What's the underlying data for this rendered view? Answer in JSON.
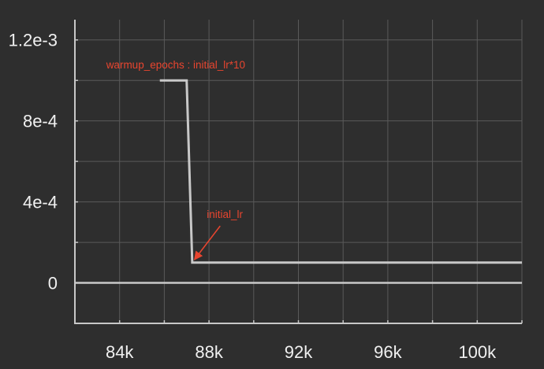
{
  "chart_data": {
    "type": "line",
    "title": "",
    "xlabel": "",
    "ylabel": "",
    "xlim": [
      82000,
      102000
    ],
    "ylim": [
      -0.0002,
      0.0013
    ],
    "grid": true,
    "x_tick_labels": [
      {
        "value": 84000,
        "label": "84k"
      },
      {
        "value": 88000,
        "label": "88k"
      },
      {
        "value": 92000,
        "label": "92k"
      },
      {
        "value": 96000,
        "label": "96k"
      },
      {
        "value": 100000,
        "label": "100k"
      }
    ],
    "y_tick_labels": [
      {
        "value": 0,
        "label": "0"
      },
      {
        "value": 0.0004,
        "label": "4e-4"
      },
      {
        "value": 0.0008,
        "label": "8e-4"
      },
      {
        "value": 0.0012,
        "label": "1.2e-3"
      }
    ],
    "series": [
      {
        "x": [
          85800,
          87000,
          87250,
          102000
        ],
        "y": [
          0.001,
          0.001,
          0.0001,
          0.0001
        ]
      }
    ],
    "annotations": [
      {
        "text": "warmup_epochs : initial_lr*10",
        "x": 83400,
        "y": 0.00106
      },
      {
        "text": "initial_lr",
        "x": 87900,
        "y": 0.00032,
        "arrow_to": {
          "x": 87350,
          "y": 0.000115
        }
      }
    ]
  },
  "colors": {
    "background": "#2e2e2e",
    "grid": "#5a5a5a",
    "axis": "#c8c8c8",
    "line": "#c8c8c8",
    "annotation": "#e8452f"
  }
}
